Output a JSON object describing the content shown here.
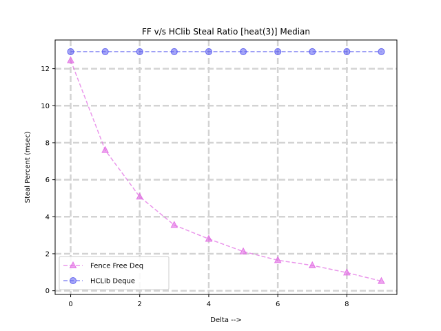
{
  "chart_data": {
    "type": "line",
    "title": "FF v/s HClib Steal Ratio [heat(3)] Median",
    "xlabel": "Delta -->",
    "ylabel": "Steal Percent (msec)",
    "xlim": [
      -0.45,
      9.45
    ],
    "ylim": [
      -0.2,
      13.55
    ],
    "xticks": [
      0,
      2,
      4,
      6,
      8
    ],
    "yticks": [
      0,
      2,
      4,
      6,
      8,
      10,
      12
    ],
    "grid": true,
    "legend_position": "lower-left",
    "x": [
      0,
      1,
      2,
      3,
      4,
      5,
      6,
      7,
      8,
      9
    ],
    "series": [
      {
        "name": "Fence Free Deq",
        "marker": "triangle",
        "color": "#e16ae3",
        "values": [
          12.45,
          7.6,
          5.08,
          3.55,
          2.8,
          2.12,
          1.65,
          1.37,
          0.98,
          0.52
        ]
      },
      {
        "name": "HCLib Deque",
        "marker": "circle",
        "color": "#5b5cf0",
        "values": [
          12.92,
          12.92,
          12.92,
          12.92,
          12.92,
          12.92,
          12.92,
          12.92,
          12.92,
          12.92
        ]
      }
    ]
  }
}
